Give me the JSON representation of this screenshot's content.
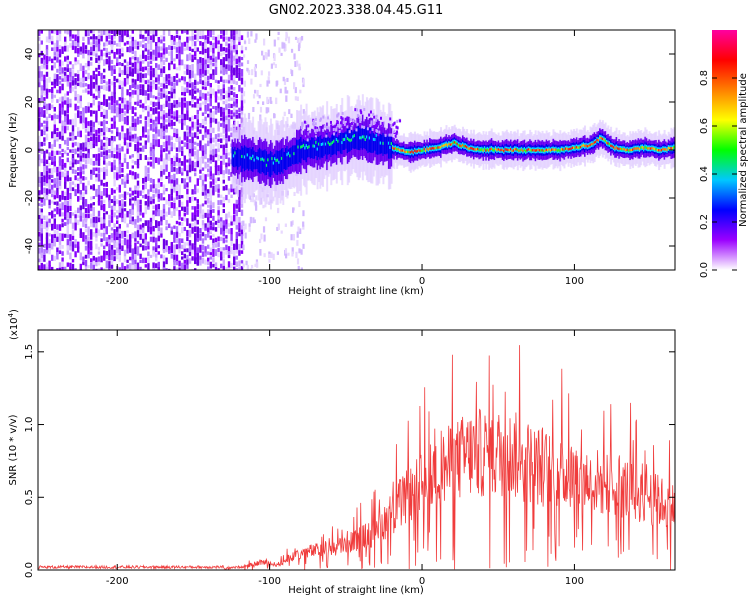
{
  "figure_title": "GN02.2023.338.04.45.G11",
  "chart_data": [
    {
      "type": "heatmap",
      "xlabel": "Height of straight line (km)",
      "ylabel": "Frequency (Hz)",
      "xlim": [
        -252,
        166
      ],
      "ylim": [
        -50,
        50
      ],
      "x_ticks": [
        -200,
        -100,
        0,
        100
      ],
      "x_tick_labels": [
        "-200",
        "-100",
        "0",
        "100"
      ],
      "y_ticks": [
        -40,
        -20,
        0,
        20,
        40
      ],
      "y_tick_labels": [
        "-40",
        "-20",
        "0",
        "20",
        "40"
      ],
      "colorbar": {
        "label": "Normalized spectral amplitude",
        "range": [
          0,
          1
        ],
        "ticks": [
          0.0,
          0.2,
          0.4,
          0.6,
          0.8
        ],
        "tick_labels": [
          "0.0",
          "0.2",
          "0.4",
          "0.6",
          "0.8"
        ],
        "colors": [
          "#ffffff",
          "#9b00ff",
          "#0000ff",
          "#00c8ff",
          "#00ff00",
          "#ffff00",
          "#ff8000",
          "#ff0000",
          "#ff00a0"
        ]
      },
      "noise_region_x": [
        -252,
        -118
      ],
      "signal_trace": {
        "x": [
          -125,
          -110,
          -100,
          -90,
          -80,
          -70,
          -60,
          -50,
          -40,
          -30,
          -20,
          -10,
          0,
          10,
          20,
          30,
          40,
          50,
          60,
          70,
          80,
          90,
          100,
          110,
          117,
          125,
          135,
          145,
          155,
          166
        ],
        "frequency": [
          -3,
          -4,
          -6,
          -4,
          0,
          1,
          2,
          4,
          5,
          3,
          1,
          -1,
          0,
          1,
          3,
          1,
          0,
          0,
          0,
          0,
          0,
          0,
          1,
          2,
          5,
          1,
          0,
          1,
          0,
          1
        ]
      },
      "grid": false
    },
    {
      "type": "line",
      "xlabel": "Height of straight line (km)",
      "ylabel": "SNR (10 * v/v)",
      "y_scale_label": "(x10",
      "y_scale_exponent": "4",
      "y_scale_close": ")",
      "xlim": [
        -252,
        166
      ],
      "ylim": [
        0,
        1.65
      ],
      "x_ticks": [
        -200,
        -100,
        0,
        100
      ],
      "x_tick_labels": [
        "-200",
        "-100",
        "0",
        "100"
      ],
      "y_ticks": [
        0.0,
        0.5,
        1.0,
        1.5
      ],
      "y_tick_labels": [
        "0.0",
        "0.5",
        "1.0",
        "1.5"
      ],
      "line_color": "#f03c3c",
      "envelope": {
        "x": [
          -252,
          -130,
          -115,
          -105,
          -95,
          -85,
          -75,
          -60,
          -45,
          -30,
          -15,
          0,
          15,
          30,
          45,
          60,
          75,
          90,
          105,
          120,
          135,
          150,
          166
        ],
        "y": [
          0.01,
          0.01,
          0.03,
          0.06,
          0.04,
          0.1,
          0.14,
          0.16,
          0.22,
          0.3,
          0.5,
          0.65,
          0.78,
          0.88,
          0.9,
          0.88,
          0.8,
          0.74,
          0.7,
          0.66,
          0.62,
          0.55,
          0.48
        ]
      },
      "grid": false
    }
  ]
}
